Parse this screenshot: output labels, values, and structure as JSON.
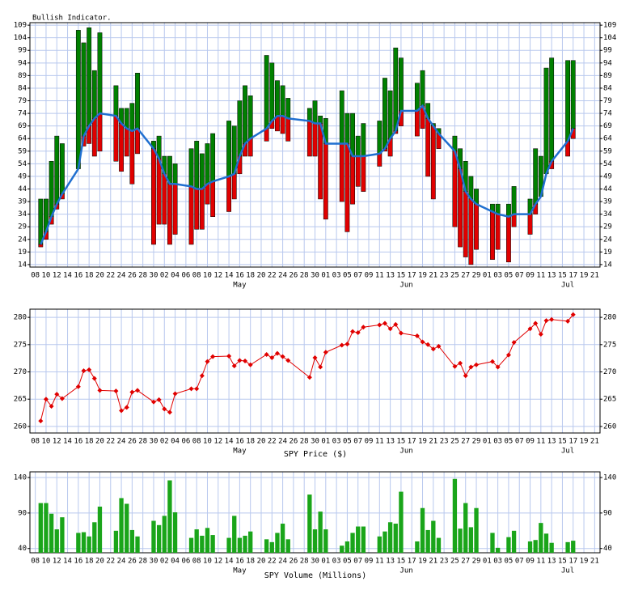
{
  "chart_data": [
    {
      "type": "range-bar",
      "title": "Bullish Indicator.",
      "x": [
        1,
        2,
        3,
        4,
        5,
        8,
        9,
        10,
        11,
        12,
        15,
        16,
        17,
        18,
        19,
        22,
        23,
        24,
        25,
        26,
        29,
        30,
        31,
        32,
        33,
        36,
        37,
        38,
        39,
        40,
        43,
        44,
        45,
        46,
        47,
        51,
        52,
        53,
        54,
        57,
        58,
        59,
        60,
        61,
        64,
        65,
        66,
        67,
        68,
        71,
        72,
        73,
        74,
        75,
        78,
        79,
        80,
        81,
        82,
        85,
        86,
        88,
        89,
        92,
        93,
        94,
        95,
        96,
        99,
        100
      ],
      "high": [
        40,
        40,
        55,
        65,
        62,
        107,
        102,
        108,
        91,
        106,
        85,
        76,
        76,
        78,
        90,
        63,
        65,
        57,
        57,
        54,
        60,
        63,
        58,
        62,
        66,
        71,
        69,
        79,
        85,
        81,
        97,
        94,
        87,
        85,
        80,
        76,
        79,
        73,
        72,
        83,
        74,
        74,
        65,
        70,
        71,
        88,
        83,
        100,
        96,
        86,
        91,
        78,
        70,
        68,
        65,
        60,
        55,
        49,
        44,
        38,
        38,
        38,
        45,
        40,
        60,
        57,
        92,
        96,
        95,
        95
      ],
      "low": [
        21,
        24,
        30,
        36,
        40,
        52,
        61,
        62,
        57,
        59,
        55,
        51,
        57,
        46,
        58,
        22,
        30,
        30,
        22,
        26,
        22,
        28,
        28,
        38,
        33,
        35,
        40,
        50,
        57,
        57,
        63,
        68,
        67,
        66,
        63,
        57,
        57,
        40,
        32,
        39,
        27,
        38,
        45,
        43,
        53,
        59,
        57,
        66,
        69,
        65,
        68,
        49,
        40,
        60,
        29,
        21,
        17,
        14,
        20,
        16,
        20,
        15,
        29,
        26,
        34,
        41,
        55,
        52,
        57,
        64
      ],
      "line": {
        "color": "#1f6fd0",
        "values": [
          22,
          27,
          33,
          38,
          42,
          52,
          65,
          69,
          72,
          74,
          73,
          70,
          68,
          67,
          68,
          60,
          56,
          50,
          46,
          46,
          45,
          44,
          44,
          46,
          47,
          49,
          50,
          57,
          62,
          64,
          68,
          71,
          73,
          73,
          72,
          71,
          70,
          70,
          62,
          62,
          62,
          57,
          57,
          57,
          58,
          60,
          64,
          67,
          75,
          75,
          77,
          72,
          69,
          66,
          59,
          52,
          43,
          40,
          38,
          35,
          34,
          33,
          34,
          34,
          38,
          41,
          50,
          55,
          63,
          68
        ]
      },
      "above_color": "#008000",
      "below_color": "#e00000",
      "xlim": [
        -1,
        105
      ],
      "xticks": [
        {
          "value": 0,
          "label": "08"
        },
        {
          "value": 2,
          "label": "10"
        },
        {
          "value": 4,
          "label": "12"
        },
        {
          "value": 6,
          "label": "14"
        },
        {
          "value": 8,
          "label": "16"
        },
        {
          "value": 10,
          "label": "18"
        },
        {
          "value": 12,
          "label": "20"
        },
        {
          "value": 14,
          "label": "22"
        },
        {
          "value": 16,
          "label": "24"
        },
        {
          "value": 18,
          "label": "26"
        },
        {
          "value": 20,
          "label": "28"
        },
        {
          "value": 22,
          "label": "30"
        },
        {
          "value": 24,
          "label": "02"
        },
        {
          "value": 26,
          "label": "04"
        },
        {
          "value": 28,
          "label": "06"
        },
        {
          "value": 30,
          "label": "08"
        },
        {
          "value": 32,
          "label": "10"
        },
        {
          "value": 34,
          "label": "12"
        },
        {
          "value": 36,
          "label": "14"
        },
        {
          "value": 38,
          "label": "16"
        },
        {
          "value": 40,
          "label": "18"
        },
        {
          "value": 42,
          "label": "20"
        },
        {
          "value": 44,
          "label": "22"
        },
        {
          "value": 46,
          "label": "24"
        },
        {
          "value": 48,
          "label": "26"
        },
        {
          "value": 50,
          "label": "28"
        },
        {
          "value": 52,
          "label": "30"
        },
        {
          "value": 54,
          "label": "01"
        },
        {
          "value": 56,
          "label": "03"
        },
        {
          "value": 58,
          "label": "05"
        },
        {
          "value": 60,
          "label": "07"
        },
        {
          "value": 62,
          "label": "09"
        },
        {
          "value": 64,
          "label": "11"
        },
        {
          "value": 66,
          "label": "13"
        },
        {
          "value": 68,
          "label": "15"
        },
        {
          "value": 70,
          "label": "17"
        },
        {
          "value": 72,
          "label": "19"
        },
        {
          "value": 74,
          "label": "21"
        },
        {
          "value": 76,
          "label": "23"
        },
        {
          "value": 78,
          "label": "25"
        },
        {
          "value": 80,
          "label": "27"
        },
        {
          "value": 82,
          "label": "29"
        },
        {
          "value": 84,
          "label": "01"
        },
        {
          "value": 86,
          "label": "03"
        },
        {
          "value": 88,
          "label": "05"
        },
        {
          "value": 90,
          "label": "07"
        },
        {
          "value": 92,
          "label": "09"
        },
        {
          "value": 94,
          "label": "11"
        },
        {
          "value": 96,
          "label": "13"
        },
        {
          "value": 98,
          "label": "15"
        },
        {
          "value": 100,
          "label": "17"
        },
        {
          "value": 102,
          "label": "19"
        },
        {
          "value": 104,
          "label": "21"
        }
      ],
      "months": [
        {
          "value": 38,
          "label": "May"
        },
        {
          "value": 69,
          "label": "Jun"
        },
        {
          "value": 99,
          "label": "Jul"
        }
      ],
      "ylim": [
        13,
        110
      ],
      "yticks": [
        14,
        19,
        24,
        29,
        34,
        39,
        44,
        49,
        54,
        59,
        64,
        69,
        74,
        79,
        84,
        89,
        94,
        99,
        104,
        109
      ],
      "grid": true
    },
    {
      "type": "line",
      "title": "SPY Price ($)",
      "color": "#e00000",
      "values": [
        261.0,
        265.0,
        263.7,
        265.9,
        265.1,
        267.3,
        270.2,
        270.4,
        268.8,
        266.6,
        266.5,
        262.9,
        263.5,
        266.3,
        266.6,
        264.5,
        264.9,
        263.2,
        262.6,
        266.0,
        266.9,
        266.9,
        269.3,
        271.9,
        272.8,
        272.9,
        271.1,
        272.1,
        272.0,
        271.3,
        273.2,
        272.6,
        273.4,
        272.8,
        272.1,
        269.0,
        272.6,
        270.9,
        273.6,
        274.9,
        275.1,
        277.4,
        277.2,
        278.2,
        278.6,
        278.9,
        277.9,
        278.7,
        277.1,
        276.6,
        275.5,
        275.0,
        274.2,
        274.7,
        271.0,
        271.6,
        269.3,
        270.9,
        271.3,
        271.9,
        270.9,
        273.1,
        275.4,
        277.9,
        278.9,
        276.9,
        279.4,
        279.6,
        279.3,
        280.5
      ],
      "ylim": [
        258.8,
        281.5
      ],
      "yticks": [
        260,
        265,
        270,
        275,
        280
      ],
      "grid": true
    },
    {
      "type": "bar",
      "title": "SPY Volume (Millions)",
      "color": "#1aa51a",
      "values": [
        104,
        104,
        89,
        67,
        84,
        62,
        63,
        57,
        77,
        99,
        65,
        111,
        103,
        66,
        57,
        79,
        73,
        86,
        136,
        91,
        55,
        67,
        58,
        69,
        59,
        55,
        86,
        55,
        58,
        64,
        53,
        49,
        62,
        75,
        53,
        116,
        67,
        92,
        67,
        44,
        50,
        62,
        71,
        71,
        57,
        64,
        77,
        75,
        120,
        50,
        97,
        66,
        79,
        55,
        138,
        68,
        104,
        70,
        97,
        62,
        41,
        56,
        65,
        50,
        52,
        76,
        61,
        48,
        49,
        51
      ],
      "ylim": [
        34,
        148
      ],
      "yticks": [
        40,
        90,
        140
      ],
      "grid": true
    }
  ]
}
